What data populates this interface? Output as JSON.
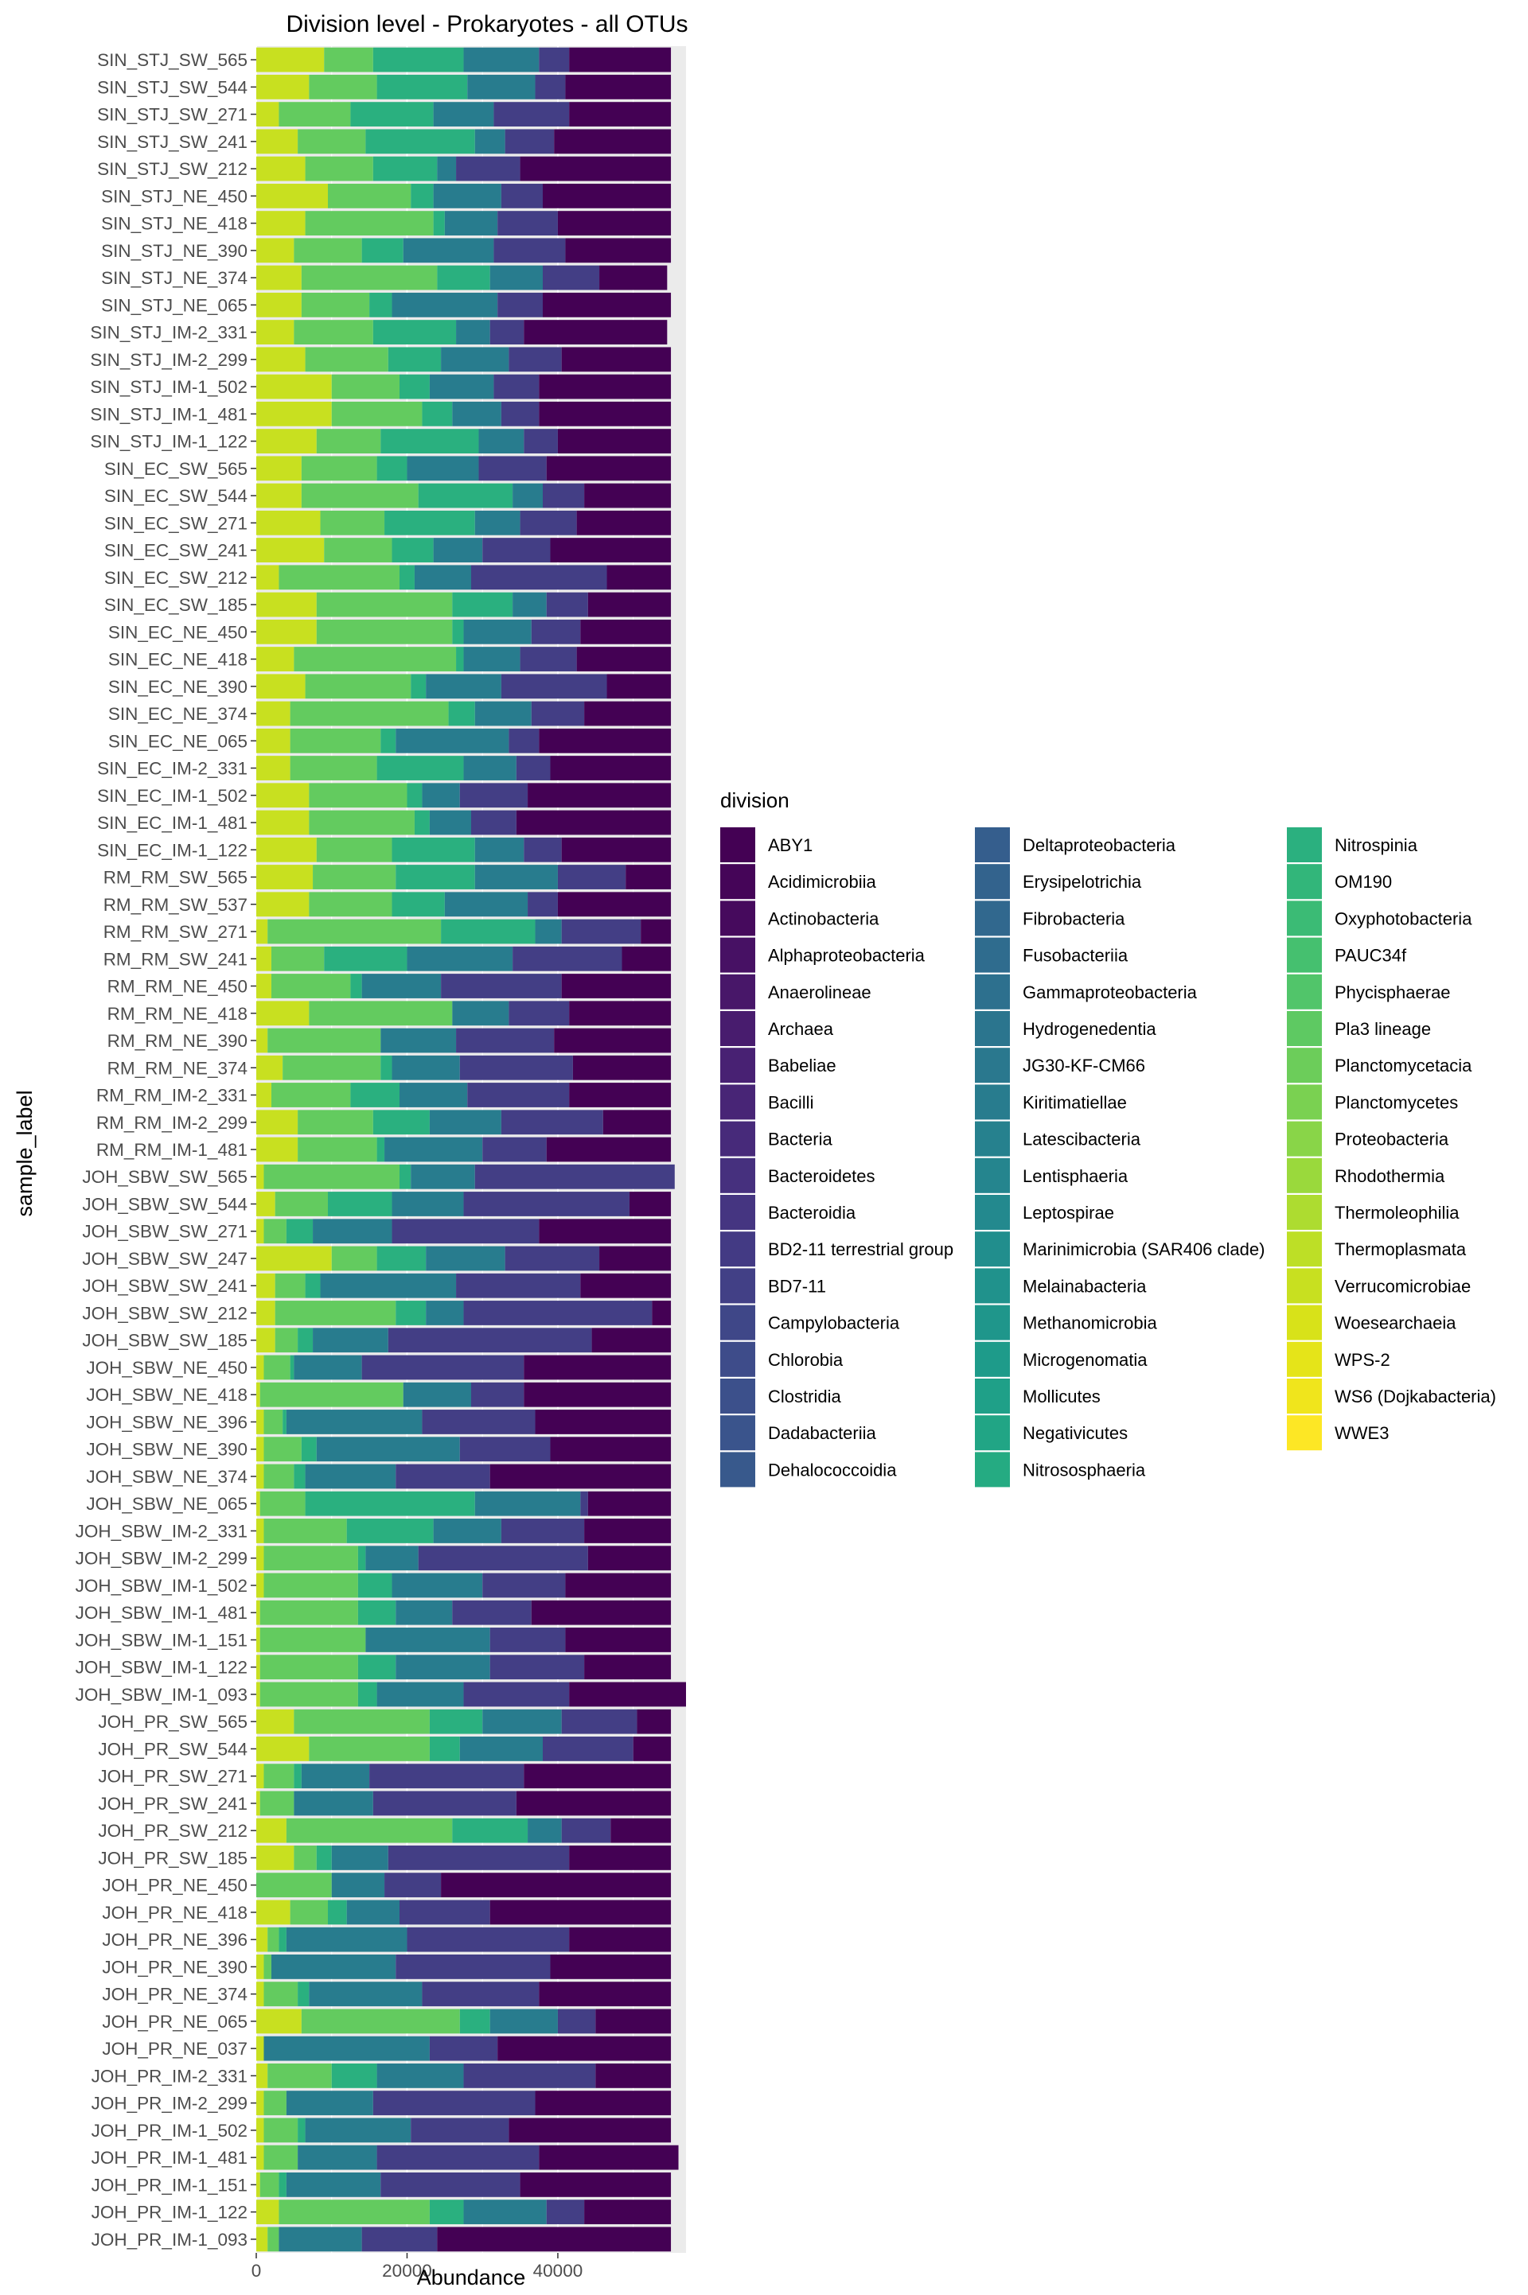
{
  "chart_data": {
    "type": "bar",
    "orientation": "horizontal",
    "stacked": true,
    "title": "Division level - Prokaryotes - all OTUs",
    "xlabel": "Abundance",
    "ylabel": "sample_label",
    "xlim": [
      0,
      57000
    ],
    "x_ticks": [
      0,
      20000,
      40000
    ],
    "x_tick_labels": [
      "0",
      "20000",
      "40000"
    ],
    "legend_title": "division",
    "legend_position": "right",
    "grid": true,
    "total_per_sample": 55000,
    "samples": [
      "SIN_STJ_SW_565",
      "SIN_STJ_SW_544",
      "SIN_STJ_SW_271",
      "SIN_STJ_SW_241",
      "SIN_STJ_SW_212",
      "SIN_STJ_NE_450",
      "SIN_STJ_NE_418",
      "SIN_STJ_NE_390",
      "SIN_STJ_NE_374",
      "SIN_STJ_NE_065",
      "SIN_STJ_IM-2_331",
      "SIN_STJ_IM-2_299",
      "SIN_STJ_IM-1_502",
      "SIN_STJ_IM-1_481",
      "SIN_STJ_IM-1_122",
      "SIN_EC_SW_565",
      "SIN_EC_SW_544",
      "SIN_EC_SW_271",
      "SIN_EC_SW_241",
      "SIN_EC_SW_212",
      "SIN_EC_SW_185",
      "SIN_EC_NE_450",
      "SIN_EC_NE_418",
      "SIN_EC_NE_390",
      "SIN_EC_NE_374",
      "SIN_EC_NE_065",
      "SIN_EC_IM-2_331",
      "SIN_EC_IM-1_502",
      "SIN_EC_IM-1_481",
      "SIN_EC_IM-1_122",
      "RM_RM_SW_565",
      "RM_RM_SW_537",
      "RM_RM_SW_271",
      "RM_RM_SW_241",
      "RM_RM_NE_450",
      "RM_RM_NE_418",
      "RM_RM_NE_390",
      "RM_RM_NE_374",
      "RM_RM_IM-2_331",
      "RM_RM_IM-2_299",
      "RM_RM_IM-1_481",
      "JOH_SBW_SW_565",
      "JOH_SBW_SW_544",
      "JOH_SBW_SW_271",
      "JOH_SBW_SW_247",
      "JOH_SBW_SW_241",
      "JOH_SBW_SW_212",
      "JOH_SBW_SW_185",
      "JOH_SBW_NE_450",
      "JOH_SBW_NE_418",
      "JOH_SBW_NE_396",
      "JOH_SBW_NE_390",
      "JOH_SBW_NE_374",
      "JOH_SBW_NE_065",
      "JOH_SBW_IM-2_331",
      "JOH_SBW_IM-2_299",
      "JOH_SBW_IM-1_502",
      "JOH_SBW_IM-1_481",
      "JOH_SBW_IM-1_151",
      "JOH_SBW_IM-1_122",
      "JOH_SBW_IM-1_093",
      "JOH_PR_SW_565",
      "JOH_PR_SW_544",
      "JOH_PR_SW_271",
      "JOH_PR_SW_241",
      "JOH_PR_SW_212",
      "JOH_PR_SW_185",
      "JOH_PR_NE_450",
      "JOH_PR_NE_418",
      "JOH_PR_NE_396",
      "JOH_PR_NE_390",
      "JOH_PR_NE_374",
      "JOH_PR_NE_065",
      "JOH_PR_NE_037",
      "JOH_PR_IM-2_331",
      "JOH_PR_IM-2_299",
      "JOH_PR_IM-1_502",
      "JOH_PR_IM-1_481",
      "JOH_PR_IM-1_151",
      "JOH_PR_IM-1_122",
      "JOH_PR_IM-1_093"
    ],
    "segment_groups": [
      {
        "name": "yellow group (Verrucomicrobiae-WWE3)",
        "color": "#c8e020"
      },
      {
        "name": "green group (Nitrosphaeria-Thermoleophilia)",
        "color": "#63cb5f"
      },
      {
        "name": "emerald group (Latescibacteria-Negativicutes)",
        "color": "#2ab07f"
      },
      {
        "name": "teal group (Dehalococcoidia-Kiritimatiellae)",
        "color": "#287c8e"
      },
      {
        "name": "indigo group (Bacilli-Dadabacteriia)",
        "color": "#433e85"
      },
      {
        "name": "purple group (ABY1-Babeliae)",
        "color": "#440154"
      }
    ],
    "series": [
      {
        "name": "yellow",
        "values": [
          9000,
          7000,
          3000,
          5500,
          6500,
          9500,
          6500,
          5000,
          6000,
          6000,
          5000,
          6500,
          10000,
          10000,
          8000,
          6000,
          6000,
          8500,
          9000,
          3000,
          8000,
          8000,
          5000,
          6500,
          4500,
          4500,
          4500,
          7000,
          7000,
          8000,
          7500,
          7000,
          1500,
          2000,
          2000,
          7000,
          1500,
          3500,
          2000,
          5500,
          5500,
          1000,
          2500,
          1000,
          10000,
          2500,
          2500,
          2500,
          1000,
          500,
          1000,
          1000,
          1000,
          500,
          1000,
          1000,
          1000,
          500,
          500,
          500,
          500,
          5000,
          7000,
          1000,
          500,
          4000,
          5000,
          0,
          4500,
          1500,
          1000,
          1000,
          6000,
          1000,
          1500,
          1000,
          1000,
          1000,
          500,
          3000,
          1500
        ]
      },
      {
        "name": "green",
        "values": [
          6500,
          9000,
          9500,
          9000,
          9000,
          11000,
          17000,
          9000,
          18000,
          9000,
          10500,
          11000,
          9000,
          12000,
          8500,
          10000,
          15500,
          8500,
          9000,
          16000,
          18000,
          18000,
          21500,
          14000,
          21000,
          12000,
          11500,
          13000,
          14000,
          10000,
          11000,
          11000,
          23000,
          7000,
          10500,
          19000,
          15000,
          13000,
          10500,
          10000,
          10500,
          18000,
          7000,
          3000,
          6000,
          4000,
          16000,
          3000,
          3500,
          19000,
          2500,
          5000,
          4000,
          6000,
          11000,
          12500,
          12500,
          13000,
          14000,
          13000,
          13000,
          18000,
          16000,
          4000,
          4500,
          22000,
          3000,
          10000,
          5000,
          1500,
          1000,
          4500,
          21000,
          0,
          8500,
          3000,
          4500,
          4500,
          2500,
          20000,
          1500
        ]
      },
      {
        "name": "emerald",
        "values": [
          12000,
          12000,
          11000,
          14500,
          8500,
          3000,
          1500,
          5500,
          7000,
          3000,
          11000,
          7000,
          4000,
          4000,
          13000,
          4000,
          12500,
          12000,
          5500,
          2000,
          8000,
          1500,
          1000,
          2000,
          3500,
          2000,
          11500,
          2000,
          2000,
          11000,
          10500,
          7000,
          12500,
          11000,
          1500,
          0,
          0,
          1500,
          6500,
          7500,
          1000,
          1500,
          8500,
          3500,
          6500,
          2000,
          4000,
          2000,
          500,
          0,
          500,
          2000,
          1500,
          22500,
          11500,
          1000,
          4500,
          5000,
          0,
          5000,
          2500,
          7000,
          4000,
          1000,
          0,
          10000,
          2000,
          0,
          2500,
          1000,
          0,
          1500,
          4000,
          0,
          6000,
          0,
          1000,
          0,
          1000,
          4500,
          0
        ]
      },
      {
        "name": "teal",
        "values": [
          10000,
          9000,
          8000,
          4000,
          2500,
          9000,
          7000,
          12000,
          7000,
          14000,
          4500,
          9000,
          8500,
          6500,
          6000,
          9500,
          4000,
          6000,
          6500,
          7500,
          4500,
          9000,
          7500,
          10000,
          7500,
          15000,
          7000,
          5000,
          5500,
          6500,
          11000,
          11000,
          3500,
          14000,
          10500,
          7500,
          10000,
          9000,
          9000,
          9500,
          13000,
          8500,
          9500,
          10500,
          10500,
          18000,
          5000,
          10000,
          9000,
          9000,
          18000,
          19000,
          12000,
          14000,
          9000,
          7000,
          12000,
          7500,
          16500,
          12500,
          11500,
          10500,
          11000,
          9000,
          10500,
          4500,
          7500,
          7000,
          7000,
          16000,
          16500,
          15000,
          9000,
          22000,
          11500,
          11500,
          14000,
          10500,
          12500,
          11000,
          11000
        ]
      },
      {
        "name": "indigo",
        "values": [
          4000,
          4000,
          10000,
          6500,
          8500,
          5500,
          8000,
          9500,
          7500,
          6000,
          4500,
          7000,
          6000,
          5000,
          4500,
          9000,
          5500,
          7500,
          9000,
          18000,
          5500,
          6500,
          7500,
          14000,
          7000,
          4000,
          4500,
          9000,
          6000,
          5000,
          9000,
          4000,
          10500,
          14500,
          16000,
          8000,
          13000,
          15000,
          13500,
          13500,
          8500,
          26500,
          22000,
          19500,
          12500,
          16500,
          25000,
          27000,
          21500,
          7000,
          15000,
          12000,
          12500,
          1000,
          11000,
          22500,
          11000,
          10500,
          10000,
          12500,
          14000,
          10000,
          12000,
          20500,
          19000,
          6500,
          24000,
          7500,
          12000,
          21500,
          20500,
          15500,
          5000,
          9000,
          17500,
          21500,
          13000,
          21500,
          18500,
          5000,
          10000
        ]
      },
      {
        "name": "purple",
        "values": [
          13500,
          14000,
          13500,
          15500,
          20000,
          17000,
          15000,
          14000,
          9000,
          17000,
          19000,
          14500,
          17500,
          17500,
          15000,
          16500,
          11500,
          12500,
          16000,
          8500,
          11000,
          12000,
          12500,
          8500,
          11500,
          17500,
          16000,
          19000,
          20500,
          14500,
          6000,
          15000,
          4000,
          6500,
          14500,
          13500,
          15500,
          13000,
          13500,
          9000,
          16500,
          0,
          5500,
          17500,
          9500,
          12000,
          2500,
          10500,
          19500,
          19500,
          18000,
          16000,
          24000,
          11000,
          11500,
          11000,
          14000,
          18500,
          14000,
          11500,
          15500,
          4500,
          5000,
          19500,
          20500,
          8000,
          13500,
          30500,
          24000,
          13500,
          16000,
          17500,
          10000,
          23000,
          10000,
          18000,
          21500,
          18500,
          20000,
          11500,
          31000
        ]
      }
    ],
    "legend_entries": [
      {
        "label": "ABY1",
        "color": "#440154"
      },
      {
        "label": "Acidimicrobiia",
        "color": "#450558"
      },
      {
        "label": "Actinobacteria",
        "color": "#460a5d"
      },
      {
        "label": "Alphaproteobacteria",
        "color": "#471164"
      },
      {
        "label": "Anaerolineae",
        "color": "#481769"
      },
      {
        "label": "Archaea",
        "color": "#481c6e"
      },
      {
        "label": "Babeliae",
        "color": "#482173"
      },
      {
        "label": "Bacilli",
        "color": "#482576"
      },
      {
        "label": "Bacteria",
        "color": "#472a7a"
      },
      {
        "label": "Bacteroidetes",
        "color": "#46307e"
      },
      {
        "label": "Bacteroidia",
        "color": "#453581"
      },
      {
        "label": "BD2-11 terrestrial group",
        "color": "#433a84"
      },
      {
        "label": "BD7-11",
        "color": "#424086"
      },
      {
        "label": "Campylobacteria",
        "color": "#3f4788"
      },
      {
        "label": "Chlorobia",
        "color": "#3e4c8a"
      },
      {
        "label": "Clostridia",
        "color": "#3c508b"
      },
      {
        "label": "Dadabacteriia",
        "color": "#3a548c"
      },
      {
        "label": "Dehalococcoidia",
        "color": "#38598c"
      },
      {
        "label": "Deltaproteobacteria",
        "color": "#355e8d"
      },
      {
        "label": "Erysipelotrichia",
        "color": "#33638d"
      },
      {
        "label": "Fibrobacteria",
        "color": "#31688e"
      },
      {
        "label": "Fusobacteriia",
        "color": "#2f6c8e"
      },
      {
        "label": "Gammaproteobacteria",
        "color": "#2d708e"
      },
      {
        "label": "Hydrogenedentia",
        "color": "#2b758e"
      },
      {
        "label": "JG30-KF-CM66",
        "color": "#2a788e"
      },
      {
        "label": "Kiritimatiellae",
        "color": "#287c8e"
      },
      {
        "label": "Latescibacteria",
        "color": "#26818e"
      },
      {
        "label": "Lentisphaeria",
        "color": "#25858e"
      },
      {
        "label": "Leptospirae",
        "color": "#23898e"
      },
      {
        "label": "Marinimicrobia (SAR406 clade)",
        "color": "#218e8d"
      },
      {
        "label": "Melainabacteria",
        "color": "#20928c"
      },
      {
        "label": "Methanomicrobia",
        "color": "#1f968b"
      },
      {
        "label": "Microgenomatia",
        "color": "#1e9b8a"
      },
      {
        "label": "Mollicutes",
        "color": "#1fa088"
      },
      {
        "label": "Negativicutes",
        "color": "#21a585"
      },
      {
        "label": "Nitrososphaeria",
        "color": "#25ab82"
      },
      {
        "label": "Nitrospinia",
        "color": "#2bb07f"
      },
      {
        "label": "OM190",
        "color": "#32b67a"
      },
      {
        "label": "Oxyphotobacteria",
        "color": "#3bbb75"
      },
      {
        "label": "PAUC34f",
        "color": "#45c06f"
      },
      {
        "label": "Phycisphaerae",
        "color": "#51c56a"
      },
      {
        "label": "Pla3 lineage",
        "color": "#5ec962"
      },
      {
        "label": "Planctomycetacia",
        "color": "#6ccd5a"
      },
      {
        "label": "Planctomycetes",
        "color": "#7ad151"
      },
      {
        "label": "Proteobacteria",
        "color": "#89d548"
      },
      {
        "label": "Rhodothermia",
        "color": "#9ad93c"
      },
      {
        "label": "Thermoleophilia",
        "color": "#addc30"
      },
      {
        "label": "Thermoplasmata",
        "color": "#bddf26"
      },
      {
        "label": "Verrucomicrobiae",
        "color": "#c8e020"
      },
      {
        "label": "Woesearchaeia",
        "color": "#d8e219"
      },
      {
        "label": "WPS-2",
        "color": "#e5e419"
      },
      {
        "label": "WS6 (Dojkabacteria)",
        "color": "#f0e51c"
      },
      {
        "label": "WWE3",
        "color": "#fde725"
      }
    ]
  }
}
